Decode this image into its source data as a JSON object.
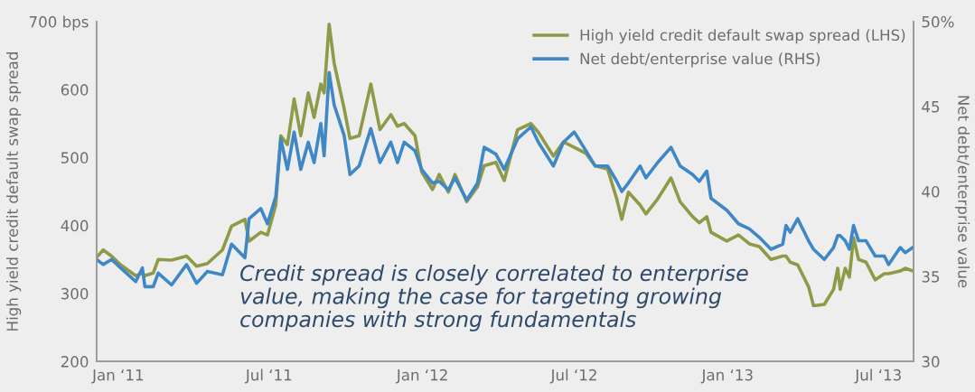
{
  "chart_data": {
    "type": "line",
    "ylabel": "High yield credit default swap spread",
    "y2label": "Net debt/enterprise value",
    "x": [
      "2010-12-06",
      "2010-12-14",
      "2010-12-24",
      "2011-01-04",
      "2011-01-22",
      "2011-01-30",
      "2011-02-02",
      "2011-02-12",
      "2011-02-18",
      "2011-03-06",
      "2011-03-24",
      "2011-04-05",
      "2011-04-18",
      "2011-05-06",
      "2011-05-17",
      "2011-06-02",
      "2011-06-07",
      "2011-06-21",
      "2011-06-29",
      "2011-07-09",
      "2011-07-15",
      "2011-07-23",
      "2011-07-31",
      "2011-08-08",
      "2011-08-17",
      "2011-08-24",
      "2011-09-01",
      "2011-09-05",
      "2011-09-11",
      "2011-09-17",
      "2011-09-29",
      "2011-10-06",
      "2011-10-17",
      "2011-10-31",
      "2011-11-11",
      "2011-11-24",
      "2011-12-02",
      "2011-12-10",
      "2011-12-23",
      "2011-12-31",
      "2012-01-13",
      "2012-01-21",
      "2012-02-01",
      "2012-02-09",
      "2012-02-23",
      "2012-03-07",
      "2012-03-15",
      "2012-03-29",
      "2012-04-08",
      "2012-04-24",
      "2012-05-10",
      "2012-05-19",
      "2012-06-06",
      "2012-06-18",
      "2012-07-01",
      "2012-07-15",
      "2012-07-26",
      "2012-08-10",
      "2012-08-21",
      "2012-08-27",
      "2012-09-04",
      "2012-09-18",
      "2012-09-25",
      "2012-10-09",
      "2012-10-25",
      "2012-11-05",
      "2012-11-20",
      "2012-11-28",
      "2012-12-07",
      "2012-12-12",
      "2012-12-31",
      "2013-01-14",
      "2013-01-27",
      "2013-02-08",
      "2013-02-22",
      "2013-03-08",
      "2013-03-12",
      "2013-03-17",
      "2013-03-26",
      "2013-04-08",
      "2013-04-14",
      "2013-04-27",
      "2013-05-08",
      "2013-05-13",
      "2013-05-16",
      "2013-05-22",
      "2013-05-27",
      "2013-06-01",
      "2013-06-07",
      "2013-06-16",
      "2013-06-27",
      "2013-07-08",
      "2013-07-13",
      "2013-07-27",
      "2013-08-02",
      "2013-08-11"
    ],
    "series": [
      {
        "name": "High yield credit default swap spread (LHS)",
        "color": "#8f9a48",
        "values": [
          353,
          364,
          355,
          342,
          326,
          330,
          326,
          330,
          350,
          349,
          355,
          340,
          344,
          364,
          399,
          409,
          377,
          390,
          386,
          430,
          532,
          519,
          586,
          532,
          595,
          559,
          608,
          595,
          696,
          639,
          572,
          528,
          532,
          608,
          541,
          563,
          546,
          550,
          532,
          479,
          453,
          475,
          449,
          475,
          435,
          457,
          488,
          493,
          466,
          541,
          550,
          537,
          502,
          523,
          515,
          506,
          488,
          483,
          439,
          409,
          449,
          430,
          417,
          439,
          470,
          435,
          413,
          404,
          413,
          390,
          377,
          386,
          373,
          369,
          350,
          355,
          355,
          346,
          342,
          310,
          282,
          284,
          306,
          337,
          306,
          337,
          324,
          382,
          350,
          346,
          320,
          329,
          329,
          333,
          337,
          333
        ]
      },
      {
        "name": "Net debt/enterprise value (RHS)",
        "color": "#3f88c5",
        "axis": "y2",
        "values": [
          36.0,
          35.7,
          36.0,
          35.5,
          34.7,
          35.5,
          34.4,
          34.4,
          35.2,
          34.5,
          35.7,
          34.6,
          35.3,
          35.1,
          36.9,
          36.1,
          38.4,
          39.0,
          38.1,
          39.7,
          43.1,
          41.3,
          43.5,
          41.3,
          42.9,
          41.7,
          44.0,
          42.1,
          47.0,
          45.1,
          43.3,
          41.0,
          41.5,
          43.7,
          41.7,
          42.9,
          41.7,
          42.9,
          42.4,
          41.3,
          40.5,
          40.6,
          40.1,
          40.8,
          39.5,
          40.5,
          42.6,
          42.2,
          41.3,
          43.1,
          43.8,
          42.9,
          41.5,
          42.9,
          43.5,
          42.4,
          41.5,
          41.5,
          40.6,
          40.0,
          40.5,
          41.5,
          40.8,
          41.7,
          42.6,
          41.5,
          41.0,
          40.6,
          41.2,
          39.6,
          38.9,
          38.1,
          37.8,
          37.3,
          36.6,
          36.9,
          38.0,
          37.6,
          38.4,
          37.1,
          36.6,
          36.0,
          36.7,
          37.4,
          37.4,
          37.1,
          36.6,
          38.0,
          37.1,
          37.1,
          36.2,
          36.2,
          35.7,
          36.7,
          36.4,
          36.7
        ]
      }
    ],
    "xlim": [
      "2010-12-06",
      "2013-08-12"
    ],
    "xticks": [
      {
        "value": "2011-01-01",
        "label": "Jan ‘11"
      },
      {
        "value": "2011-07-01",
        "label": "Jul ‘11"
      },
      {
        "value": "2012-01-01",
        "label": "Jan ‘12"
      },
      {
        "value": "2012-07-01",
        "label": "Jul ‘12"
      },
      {
        "value": "2013-01-01",
        "label": "Jan ‘13"
      },
      {
        "value": "2013-07-01",
        "label": "Jul ‘13"
      }
    ],
    "ylim": [
      200,
      700
    ],
    "yticks": [
      200,
      300,
      400,
      500,
      600,
      {
        "value": 700,
        "label": "700 bps"
      }
    ],
    "y2lim": [
      30,
      50
    ],
    "y2ticks": [
      30,
      35,
      40,
      45,
      {
        "value": 50,
        "label": "50%"
      }
    ],
    "annotations": [
      "Credit spread is closely correlated to enterprise\nvalue, making the case for targeting growing\ncompanies with strong fundamentals"
    ],
    "legend": "top right",
    "grid": false
  }
}
